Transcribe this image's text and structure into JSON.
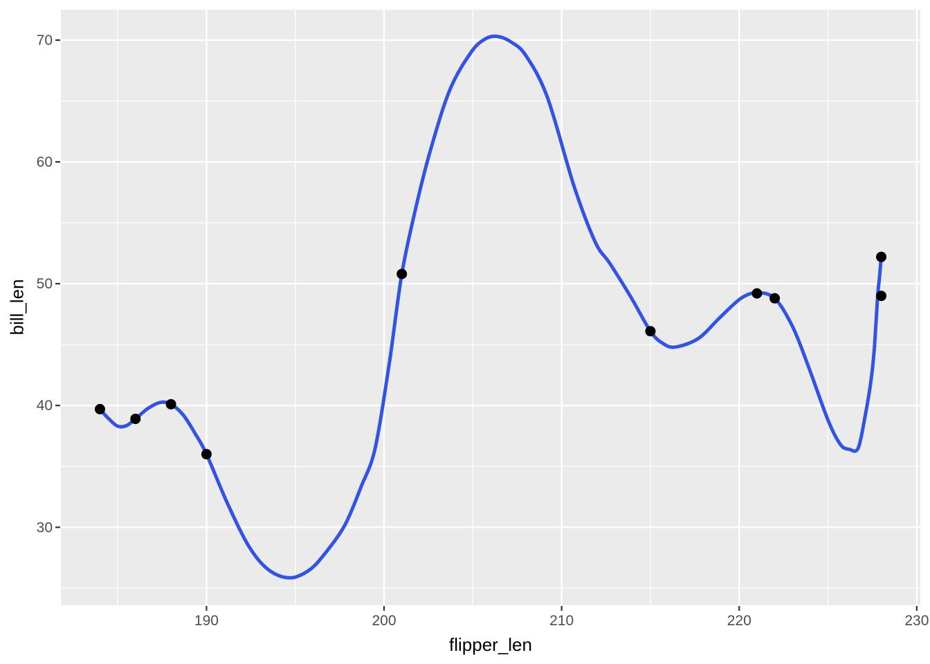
{
  "chart_data": {
    "type": "line",
    "title": "",
    "xlabel": "flipper_len",
    "ylabel": "bill_len",
    "xlim": [
      181.8,
      230.2
    ],
    "ylim": [
      23.6,
      72.5
    ],
    "x_major_ticks": [
      190,
      200,
      210,
      220,
      230
    ],
    "x_minor_gridlines": [
      185,
      195,
      205,
      215,
      225
    ],
    "y_major_ticks": [
      30,
      40,
      50,
      60,
      70
    ],
    "y_minor_gridlines": [
      25,
      35,
      45,
      55,
      65
    ],
    "grid": true,
    "legend_position": "none",
    "theme": {
      "panel_background": "#EBEBEB",
      "gridline_color": "#FFFFFF",
      "major_grid_width": 2.4,
      "minor_grid_width": 1.2,
      "tick_mark_color": "#333333",
      "tick_text_color": "#4D4D4D",
      "axis_title_color": "#000000",
      "outer_background": "#FFFFFF"
    },
    "series": [
      {
        "name": "spline-smooth-line",
        "kind": "smooth-line",
        "color": "#3353E3",
        "stroke_width": 5,
        "points": [
          [
            184.0,
            39.7
          ],
          [
            184.5,
            38.9
          ],
          [
            185.0,
            38.3
          ],
          [
            185.5,
            38.35
          ],
          [
            186.0,
            38.9
          ],
          [
            186.7,
            39.75
          ],
          [
            187.4,
            40.25
          ],
          [
            188.0,
            40.1
          ],
          [
            188.7,
            39.2
          ],
          [
            189.4,
            37.6
          ],
          [
            190.0,
            36.0
          ],
          [
            191.2,
            31.9
          ],
          [
            192.4,
            28.4
          ],
          [
            193.5,
            26.5
          ],
          [
            194.7,
            25.85
          ],
          [
            195.8,
            26.5
          ],
          [
            196.7,
            27.9
          ],
          [
            197.8,
            30.2
          ],
          [
            198.7,
            33.3
          ],
          [
            199.5,
            36.5
          ],
          [
            200.3,
            43.5
          ],
          [
            201.0,
            50.8
          ],
          [
            201.8,
            56.3
          ],
          [
            202.6,
            60.9
          ],
          [
            203.7,
            65.9
          ],
          [
            204.9,
            69.0
          ],
          [
            205.7,
            70.1
          ],
          [
            206.4,
            70.3
          ],
          [
            207.2,
            69.8
          ],
          [
            208.0,
            68.7
          ],
          [
            209.2,
            65.3
          ],
          [
            210.7,
            58.0
          ],
          [
            211.9,
            53.4
          ],
          [
            212.7,
            51.7
          ],
          [
            213.9,
            48.9
          ],
          [
            215.0,
            46.1
          ],
          [
            215.7,
            45.1
          ],
          [
            216.4,
            44.8
          ],
          [
            217.7,
            45.5
          ],
          [
            218.9,
            47.2
          ],
          [
            220.1,
            48.8
          ],
          [
            221.0,
            49.25
          ],
          [
            222.0,
            48.8
          ],
          [
            223.0,
            46.5
          ],
          [
            223.9,
            43.2
          ],
          [
            225.0,
            38.8
          ],
          [
            225.7,
            36.8
          ],
          [
            226.2,
            36.4
          ],
          [
            226.7,
            36.5
          ],
          [
            227.1,
            39.2
          ],
          [
            227.4,
            41.8
          ],
          [
            227.6,
            44.5
          ],
          [
            227.8,
            49.0
          ],
          [
            227.9,
            50.5
          ],
          [
            228.0,
            52.2
          ]
        ]
      },
      {
        "name": "data-points",
        "kind": "scatter",
        "color": "#000000",
        "radius": 7.5,
        "points": [
          [
            184,
            39.7
          ],
          [
            186,
            38.9
          ],
          [
            188,
            40.1
          ],
          [
            190,
            36.0
          ],
          [
            201,
            50.8
          ],
          [
            215,
            46.1
          ],
          [
            221,
            49.2
          ],
          [
            222,
            48.8
          ],
          [
            228,
            49.0
          ],
          [
            228,
            52.2
          ]
        ]
      }
    ]
  }
}
